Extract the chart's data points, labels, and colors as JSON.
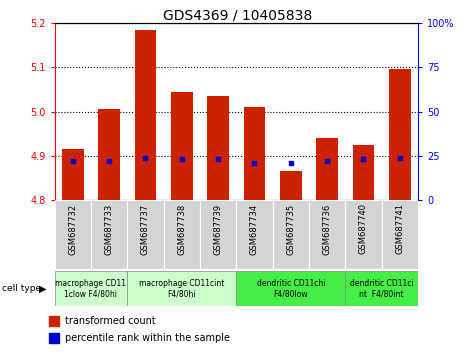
{
  "title": "GDS4369 / 10405838",
  "samples": [
    "GSM687732",
    "GSM687733",
    "GSM687737",
    "GSM687738",
    "GSM687739",
    "GSM687734",
    "GSM687735",
    "GSM687736",
    "GSM687740",
    "GSM687741"
  ],
  "transformed_count": [
    4.915,
    5.005,
    5.185,
    5.045,
    5.035,
    5.01,
    4.865,
    4.94,
    4.925,
    5.095
  ],
  "percentile_rank": [
    22,
    22,
    24,
    23,
    23,
    21,
    21,
    22,
    23,
    24
  ],
  "ylim": [
    4.8,
    5.2
  ],
  "yticks": [
    4.8,
    4.9,
    5.0,
    5.1,
    5.2
  ],
  "right_yticks": [
    0,
    25,
    50,
    75,
    100
  ],
  "bar_color": "#cc2200",
  "dot_color": "#0000cc",
  "bar_bottom": 4.8,
  "cell_type_groups": [
    {
      "label": "macrophage CD11\n1clow F4/80hi",
      "start": 0,
      "end": 2,
      "color": "#ccffcc"
    },
    {
      "label": "macrophage CD11cint\nF4/80hi",
      "start": 2,
      "end": 5,
      "color": "#ccffcc"
    },
    {
      "label": "dendritic CD11chi\nF4/80low",
      "start": 5,
      "end": 8,
      "color": "#44ee44"
    },
    {
      "label": "dendritic CD11ci\nnt  F4/80int",
      "start": 8,
      "end": 10,
      "color": "#44ee44"
    }
  ],
  "grid_color": "black",
  "bg_color": "#ffffff",
  "sample_box_color": "#d4d4d4",
  "cell_type_label": "cell type"
}
